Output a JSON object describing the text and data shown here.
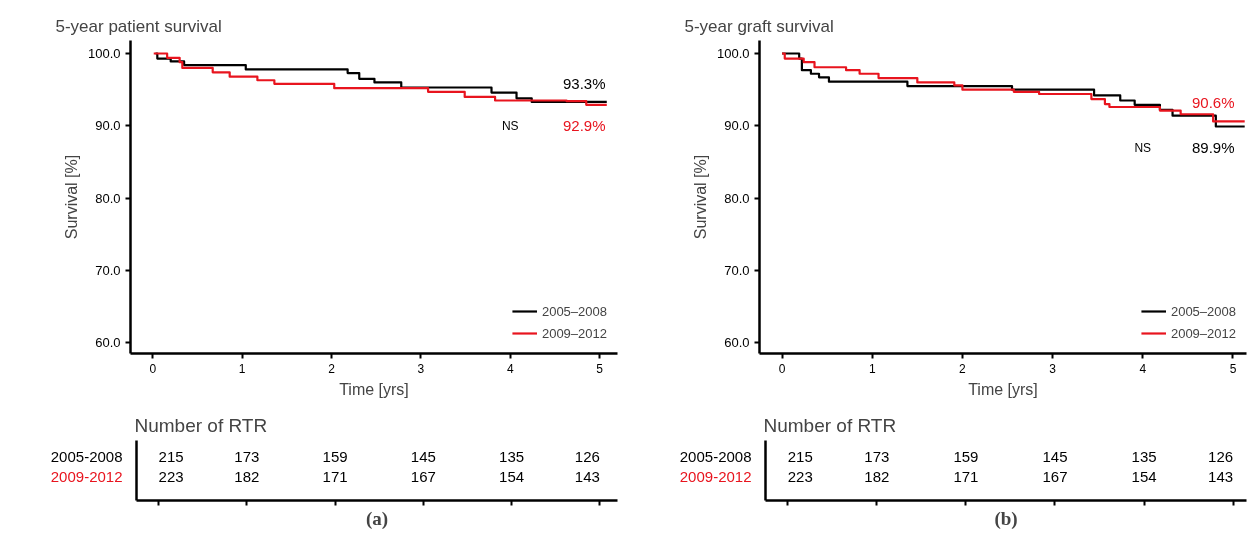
{
  "chart_data": [
    {
      "type": "step",
      "title": "5-year patient survival",
      "xlabel": "Time [yrs]",
      "ylabel": "Survival [%]",
      "xlim": [
        -0.25,
        5.2
      ],
      "ylim": [
        58.5,
        101.8
      ],
      "xticks": [
        0,
        1,
        2,
        3,
        4,
        5
      ],
      "yticks": [
        {
          "value": 60,
          "label": "60.0"
        },
        {
          "value": 70,
          "label": "70.0"
        },
        {
          "value": 80,
          "label": "80.0"
        },
        {
          "value": 90,
          "label": "90.0"
        },
        {
          "value": 100,
          "label": "100.0"
        }
      ],
      "grid": false,
      "legend": "bottom right",
      "line_style": "solid",
      "series": [
        {
          "name": "2005–2008",
          "color": "#000000",
          "x": [
            0.03,
            0.05,
            0.2,
            0.35,
            1.04,
            2.18,
            2.31,
            2.48,
            2.78,
            3.79,
            4.07,
            4.24,
            5.08
          ],
          "values": [
            100,
            99.3,
            98.9,
            98.4,
            97.8,
            97.3,
            96.5,
            96.0,
            95.3,
            94.6,
            93.8,
            93.3,
            93.3
          ]
        },
        {
          "name": "2009–2012",
          "color": "#e8141e",
          "x": [
            0.01,
            0.16,
            0.3,
            0.33,
            0.67,
            0.86,
            1.17,
            1.36,
            2.03,
            3.08,
            3.49,
            3.83,
            4.63,
            4.85,
            5.08
          ],
          "values": [
            100,
            99.4,
            98.8,
            98.0,
            97.4,
            96.8,
            96.3,
            95.8,
            95.2,
            94.7,
            94.0,
            93.5,
            93.4,
            92.9,
            92.9
          ]
        }
      ],
      "annotations": [
        "93.3%",
        "92.9%",
        "NS"
      ]
    },
    {
      "type": "other",
      "title": "Number of RTR",
      "annotations": [
        "2005-2008",
        "2009-2012",
        "215",
        "173",
        "159",
        "145",
        "135",
        "126",
        "223",
        "182",
        "171",
        "167",
        "154",
        "143",
        "(a)"
      ]
    },
    {
      "type": "step",
      "title": "5-year graft survival",
      "xlabel": "Time [yrs]",
      "ylabel": "Survival [%]",
      "xlim": [
        -0.25,
        5.15
      ],
      "ylim": [
        58.5,
        101.8
      ],
      "xticks": [
        0,
        1,
        2,
        3,
        4,
        5
      ],
      "yticks": [
        {
          "value": 60,
          "label": "60.0"
        },
        {
          "value": 70,
          "label": "70.0"
        },
        {
          "value": 80,
          "label": "80.0"
        },
        {
          "value": 90,
          "label": "90.0"
        },
        {
          "value": 100,
          "label": "100.0"
        }
      ],
      "grid": false,
      "legend": "bottom right",
      "line_style": "solid",
      "series": [
        {
          "name": "2005–2008",
          "color": "#000000",
          "x": [
            0.0,
            0.19,
            0.22,
            0.32,
            0.41,
            0.52,
            1.39,
            2.55,
            3.46,
            3.75,
            3.91,
            4.19,
            4.33,
            4.81,
            5.13
          ],
          "values": [
            100,
            99.3,
            97.7,
            97.2,
            96.7,
            96.1,
            95.5,
            95.0,
            94.2,
            93.5,
            92.9,
            92.2,
            91.4,
            89.9,
            89.9
          ]
        },
        {
          "name": "2009–2012",
          "color": "#e8141e",
          "x": [
            0.0,
            0.03,
            0.24,
            0.36,
            0.71,
            0.86,
            1.07,
            1.5,
            1.91,
            2.0,
            2.57,
            2.85,
            3.43,
            3.58,
            3.63,
            4.19,
            4.42,
            4.78,
            5.13
          ],
          "values": [
            100,
            99.3,
            98.8,
            98.1,
            97.7,
            97.2,
            96.6,
            96.0,
            95.6,
            95.0,
            94.7,
            94.4,
            93.7,
            93.0,
            92.6,
            92.1,
            91.6,
            90.6,
            90.6
          ]
        }
      ],
      "annotations": [
        "89.9%",
        "90.6%",
        "NS"
      ]
    },
    {
      "type": "other",
      "title": "Number of RTR",
      "annotations": [
        "2005-2008",
        "2009-2012",
        "215",
        "173",
        "159",
        "145",
        "135",
        "126",
        "223",
        "182",
        "171",
        "167",
        "154",
        "143",
        "(b)"
      ]
    }
  ]
}
